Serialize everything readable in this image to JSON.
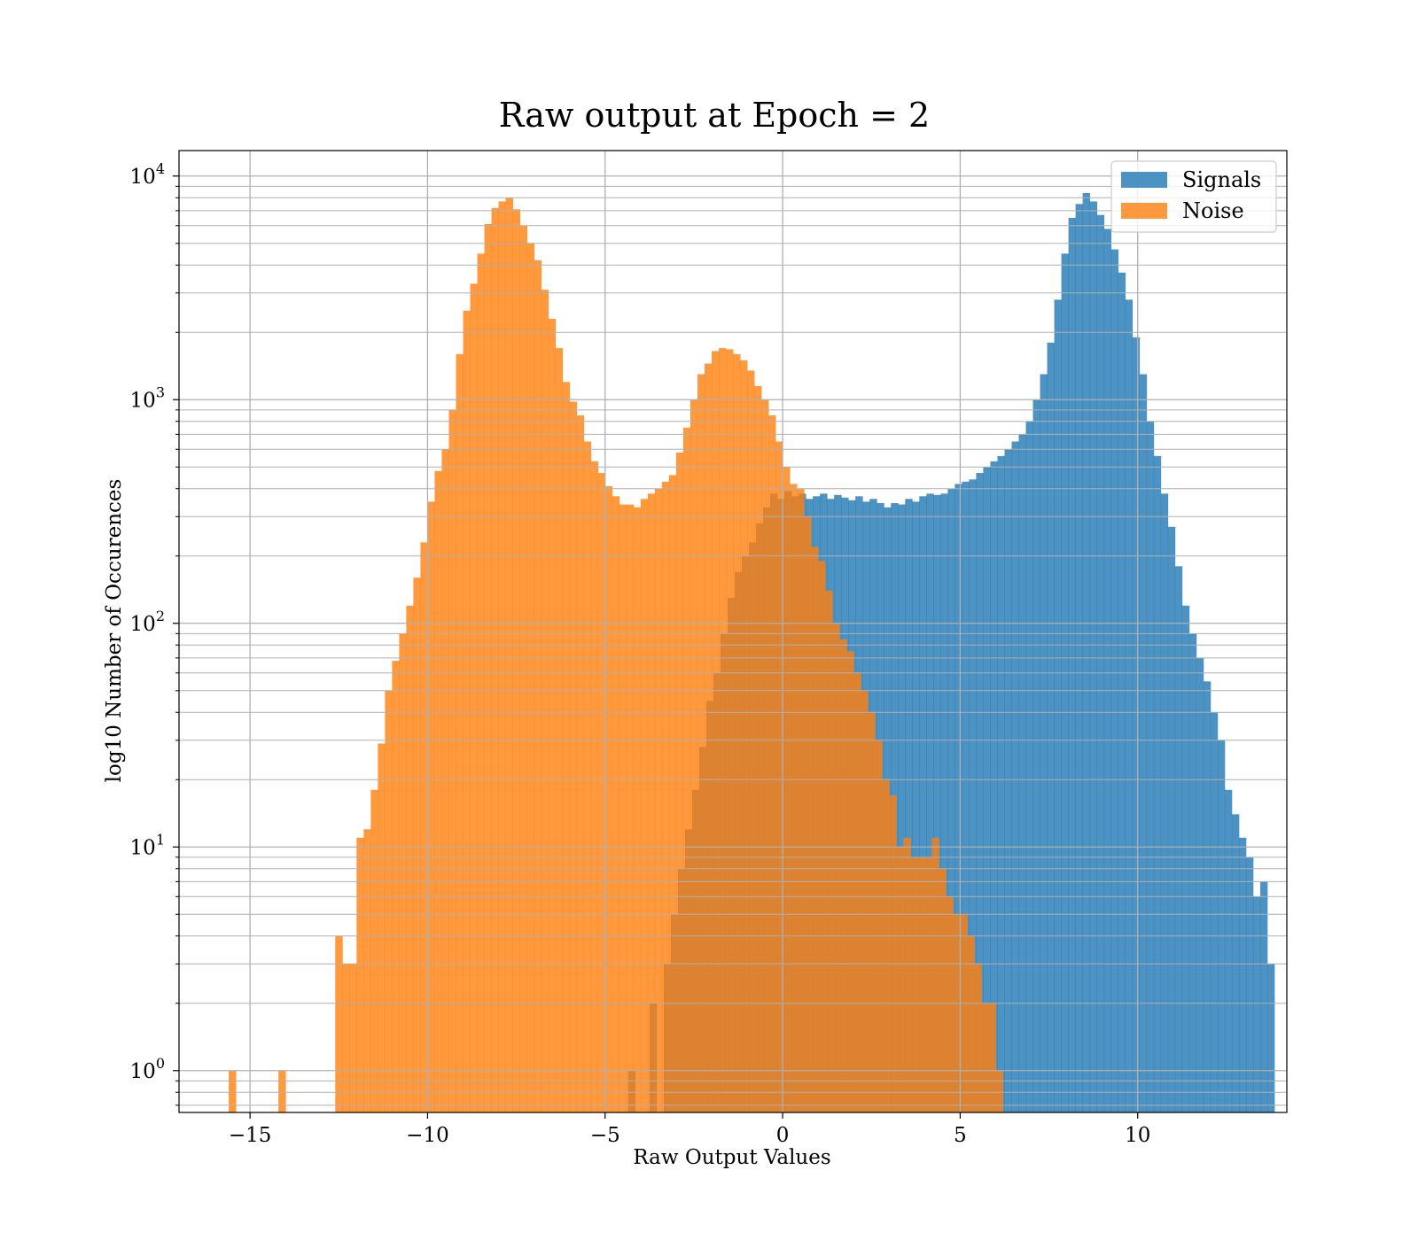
{
  "chart_data": {
    "type": "histogram",
    "title": "Raw output at Epoch = 2",
    "xlabel": "Raw Output Values",
    "ylabel": "log10 Number of Occurences",
    "xlim": [
      -17,
      14.2
    ],
    "ylim": [
      0.65,
      13000
    ],
    "yscale": "log",
    "grid": true,
    "legend_position": "top-right",
    "xticks": [
      {
        "value": -15,
        "label": "−15"
      },
      {
        "value": -10,
        "label": "−10"
      },
      {
        "value": -5,
        "label": "−5"
      },
      {
        "value": 0,
        "label": "0"
      },
      {
        "value": 5,
        "label": "5"
      },
      {
        "value": 10,
        "label": "10"
      }
    ],
    "yticks": [
      {
        "value": 1,
        "base": "10",
        "exp": "0"
      },
      {
        "value": 10,
        "base": "10",
        "exp": "1"
      },
      {
        "value": 100,
        "base": "10",
        "exp": "2"
      },
      {
        "value": 1000,
        "base": "10",
        "exp": "3"
      },
      {
        "value": 10000,
        "base": "10",
        "exp": "4"
      }
    ],
    "series": [
      {
        "name": "Signals",
        "color": "#1f77b4",
        "alpha": 0.8,
        "bin_start": -4.35,
        "bin_width": 0.2,
        "counts": [
          1,
          0,
          0,
          2,
          0,
          3,
          5,
          8,
          12,
          18,
          28,
          45,
          60,
          90,
          130,
          170,
          200,
          230,
          280,
          330,
          380,
          360,
          390,
          370,
          380,
          360,
          370,
          380,
          360,
          375,
          365,
          355,
          370,
          350,
          360,
          345,
          330,
          345,
          340,
          360,
          350,
          370,
          380,
          375,
          380,
          400,
          420,
          430,
          440,
          470,
          500,
          530,
          560,
          600,
          650,
          700,
          800,
          1000,
          1300,
          1800,
          2800,
          4500,
          6500,
          7500,
          8400,
          7700,
          6700,
          5800,
          4700,
          3700,
          2800,
          1900,
          1300,
          800,
          560,
          380,
          270,
          180,
          120,
          90,
          70,
          55,
          40,
          30,
          18,
          14,
          11,
          9,
          6,
          7,
          3
        ]
      },
      {
        "name": "Noise",
        "color": "#ff7f0e",
        "alpha": 0.8,
        "bin_start": -15.6,
        "bin_width": 0.2,
        "counts": [
          1,
          0,
          0,
          0,
          0,
          0,
          0,
          1,
          0,
          0,
          0,
          0,
          0,
          0,
          0,
          4,
          3,
          3,
          11,
          12,
          18,
          29,
          50,
          68,
          90,
          120,
          160,
          230,
          350,
          480,
          600,
          900,
          1600,
          2500,
          3300,
          4500,
          6100,
          7200,
          7700,
          8000,
          7100,
          6000,
          5000,
          4200,
          3100,
          2300,
          1700,
          1200,
          980,
          850,
          650,
          530,
          470,
          410,
          370,
          340,
          340,
          330,
          360,
          380,
          400,
          430,
          460,
          580,
          750,
          1000,
          1300,
          1450,
          1650,
          1700,
          1680,
          1600,
          1500,
          1350,
          1150,
          1000,
          850,
          650,
          500,
          420,
          400,
          300,
          220,
          190,
          140,
          100,
          85,
          75,
          60,
          50,
          40,
          30,
          20,
          17,
          10,
          11,
          9,
          9,
          9,
          11,
          8,
          6,
          5,
          5,
          4,
          3,
          2,
          2,
          1
        ]
      }
    ]
  }
}
